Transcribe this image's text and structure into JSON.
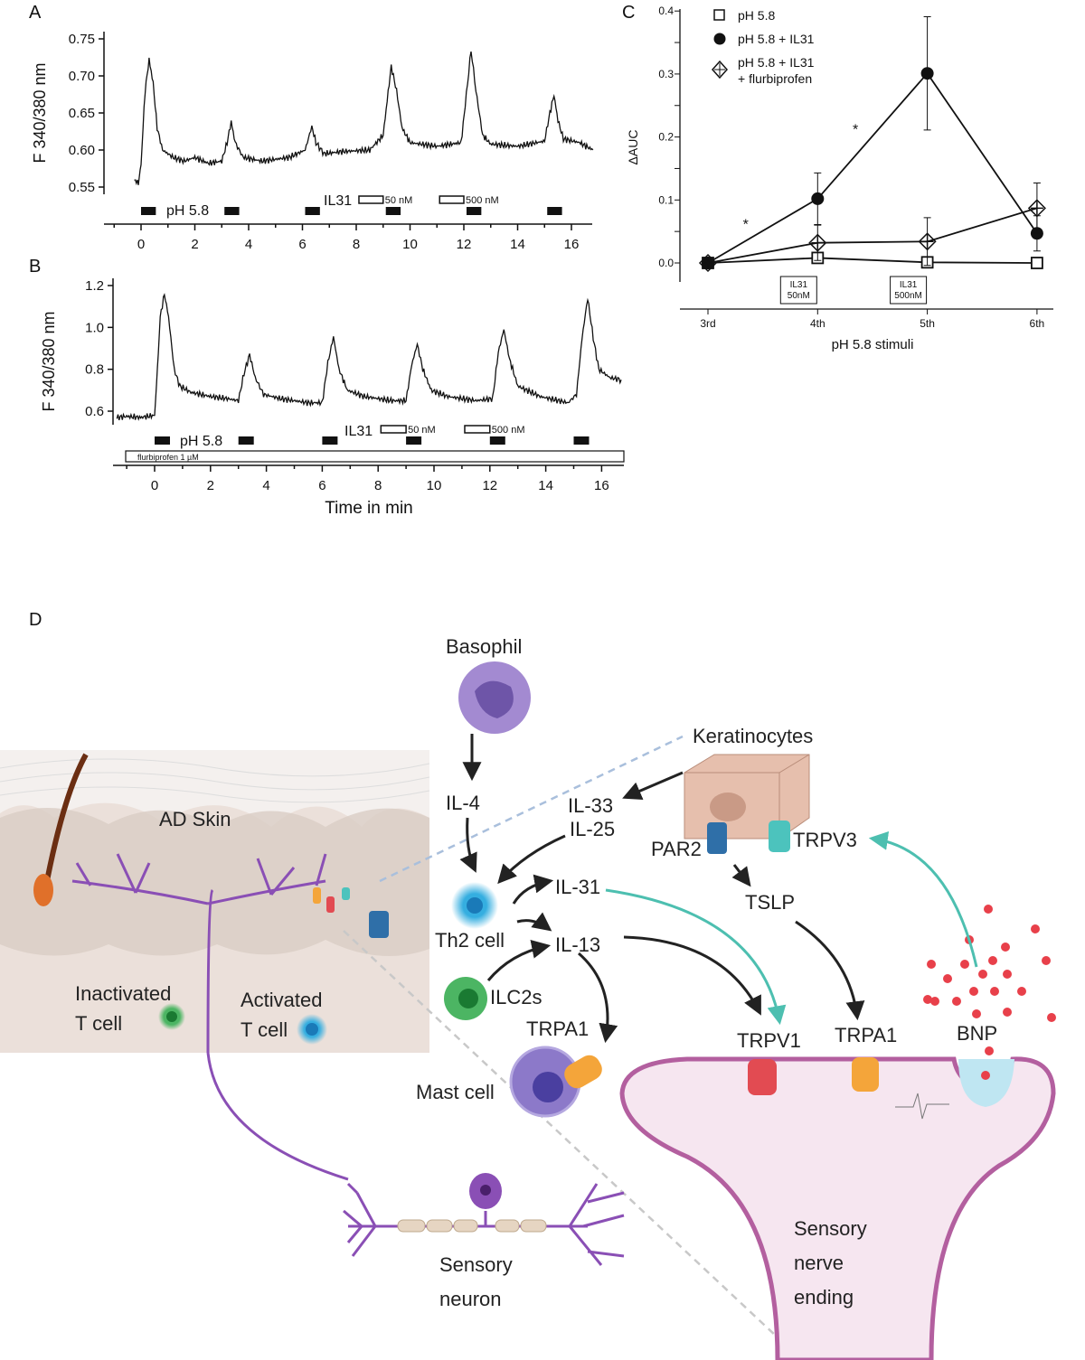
{
  "panels": {
    "a": "A",
    "b": "B",
    "c": "C",
    "d": "D"
  },
  "chart_data": [
    {
      "panel": "A",
      "type": "line",
      "ylabel": "F 340/380 nm",
      "xlabel": "",
      "xlim": [
        -0.5,
        17
      ],
      "ylim": [
        0.55,
        0.75
      ],
      "xticks": [
        0,
        2,
        4,
        6,
        8,
        10,
        12,
        14,
        16
      ],
      "yticks": [
        "0.55",
        "0.60",
        "0.65",
        "0.70",
        "0.75"
      ],
      "stimulus_label": "pH 5.8",
      "stimuli_start_min": [
        0,
        3.1,
        6.1,
        9.1,
        12.1,
        15.1
      ],
      "il31_label": "IL31",
      "il31_applications": [
        {
          "label": "50 nM",
          "start": 8.1,
          "end": 9.0
        },
        {
          "label": "500 nM",
          "start": 11.1,
          "end": 12.0
        }
      ],
      "trace": [
        [
          -0.25,
          0.56
        ],
        [
          -0.1,
          0.555
        ],
        [
          0,
          0.58
        ],
        [
          0.15,
          0.68
        ],
        [
          0.3,
          0.722
        ],
        [
          0.45,
          0.69
        ],
        [
          0.6,
          0.63
        ],
        [
          0.8,
          0.6
        ],
        [
          1.2,
          0.59
        ],
        [
          1.6,
          0.585
        ],
        [
          2,
          0.59
        ],
        [
          2.5,
          0.582
        ],
        [
          3.0,
          0.585
        ],
        [
          3.2,
          0.61
        ],
        [
          3.35,
          0.638
        ],
        [
          3.5,
          0.61
        ],
        [
          3.8,
          0.59
        ],
        [
          4.5,
          0.585
        ],
        [
          5.5,
          0.59
        ],
        [
          6.1,
          0.6
        ],
        [
          6.35,
          0.632
        ],
        [
          6.5,
          0.61
        ],
        [
          6.8,
          0.595
        ],
        [
          7.5,
          0.598
        ],
        [
          8.5,
          0.6
        ],
        [
          9.0,
          0.62
        ],
        [
          9.3,
          0.713
        ],
        [
          9.5,
          0.68
        ],
        [
          9.7,
          0.63
        ],
        [
          10,
          0.61
        ],
        [
          11,
          0.605
        ],
        [
          11.9,
          0.61
        ],
        [
          12.05,
          0.66
        ],
        [
          12.27,
          0.735
        ],
        [
          12.45,
          0.68
        ],
        [
          12.7,
          0.62
        ],
        [
          13,
          0.608
        ],
        [
          14,
          0.605
        ],
        [
          15,
          0.612
        ],
        [
          15.2,
          0.65
        ],
        [
          15.35,
          0.674
        ],
        [
          15.5,
          0.64
        ],
        [
          15.7,
          0.615
        ],
        [
          16.3,
          0.61
        ],
        [
          16.8,
          0.6
        ]
      ]
    },
    {
      "panel": "B",
      "type": "line",
      "ylabel": "F 340/380 nm",
      "xlabel": "Time in min",
      "xlim": [
        -1.5,
        17
      ],
      "ylim": [
        0.6,
        1.2
      ],
      "xticks": [
        0,
        2,
        4,
        6,
        8,
        10,
        12,
        14,
        16
      ],
      "yticks": [
        "0.6",
        "0.8",
        "1.0",
        "1.2"
      ],
      "stimulus_label": "pH 5.8",
      "stimuli_start_min": [
        0,
        3.0,
        6.0,
        9.0,
        12.0,
        15.0
      ],
      "il31_label": "IL31",
      "il31_applications": [
        {
          "label": "50 nM",
          "start": 8.1,
          "end": 9.0
        },
        {
          "label": "500 nM",
          "start": 11.1,
          "end": 12.0
        }
      ],
      "background_treatment": "flurbiprofen 1 µM",
      "trace": [
        [
          -1.35,
          0.57
        ],
        [
          -1.0,
          0.575
        ],
        [
          -0.5,
          0.57
        ],
        [
          0,
          0.58
        ],
        [
          0.1,
          0.8
        ],
        [
          0.2,
          1.05
        ],
        [
          0.35,
          1.16
        ],
        [
          0.5,
          1.05
        ],
        [
          0.7,
          0.8
        ],
        [
          0.9,
          0.72
        ],
        [
          1.3,
          0.69
        ],
        [
          2,
          0.67
        ],
        [
          2.6,
          0.66
        ],
        [
          3.0,
          0.65
        ],
        [
          3.2,
          0.78
        ],
        [
          3.4,
          0.87
        ],
        [
          3.6,
          0.76
        ],
        [
          3.9,
          0.68
        ],
        [
          4.5,
          0.66
        ],
        [
          5.5,
          0.64
        ],
        [
          6.0,
          0.64
        ],
        [
          6.2,
          0.83
        ],
        [
          6.4,
          0.955
        ],
        [
          6.6,
          0.8
        ],
        [
          6.9,
          0.7
        ],
        [
          7.5,
          0.67
        ],
        [
          8.5,
          0.65
        ],
        [
          9.0,
          0.65
        ],
        [
          9.2,
          0.82
        ],
        [
          9.4,
          0.92
        ],
        [
          9.6,
          0.8
        ],
        [
          9.9,
          0.7
        ],
        [
          10.5,
          0.67
        ],
        [
          11.5,
          0.65
        ],
        [
          12.1,
          0.66
        ],
        [
          12.3,
          0.88
        ],
        [
          12.5,
          0.99
        ],
        [
          12.7,
          0.85
        ],
        [
          13,
          0.72
        ],
        [
          13.8,
          0.67
        ],
        [
          14.8,
          0.64
        ],
        [
          15.1,
          0.68
        ],
        [
          15.3,
          0.95
        ],
        [
          15.5,
          1.14
        ],
        [
          15.7,
          0.95
        ],
        [
          15.9,
          0.8
        ],
        [
          16.3,
          0.76
        ],
        [
          16.7,
          0.75
        ]
      ]
    },
    {
      "panel": "C",
      "type": "line",
      "ylabel": "ΔAUC",
      "xlabel": "pH 5.8 stimuli",
      "categories": [
        "3rd",
        "4th",
        "5th",
        "6th"
      ],
      "ylim": [
        -0.03,
        0.4
      ],
      "yticks": [
        "0.0",
        "0.1",
        "0.2",
        "0.3",
        "0.4"
      ],
      "legend_position": "top-left",
      "series": [
        {
          "name": "pH 5.8",
          "marker": "open-square",
          "values": [
            0,
            0.008,
            0.001,
            0
          ],
          "errors": [
            0,
            0.005,
            0.004,
            0.002
          ]
        },
        {
          "name": "pH 5.8 + IL31",
          "marker": "filled-circle",
          "values": [
            0,
            0.102,
            0.301,
            0.047
          ],
          "errors": [
            0,
            0.041,
            0.09,
            0.028
          ]
        },
        {
          "name_lines": [
            "pH 5.8 + IL31",
            "+ flurbiprofen"
          ],
          "marker": "open-diamond-cross",
          "values": [
            0,
            0.032,
            0.034,
            0.087
          ],
          "errors": [
            0,
            0.028,
            0.038,
            0.04
          ]
        }
      ],
      "significance": [
        {
          "between": [
            "3rd",
            "4th"
          ],
          "label": "*"
        },
        {
          "between": [
            "4th",
            "5th"
          ],
          "label": "*"
        }
      ],
      "annotations": [
        {
          "at": "4th",
          "lines": [
            "IL31",
            "50nM"
          ]
        },
        {
          "at": "5th",
          "lines": [
            "IL31",
            "500nM"
          ]
        }
      ]
    }
  ],
  "diagram": {
    "basophil": "Basophil",
    "keratinocytes": "Keratinocytes",
    "il4": "IL-4",
    "il33": "IL-33",
    "il25": "IL-25",
    "ad_skin": "AD Skin",
    "par2": "PAR2",
    "trpv3": "TRPV3",
    "tslp": "TSLP",
    "th2": "Th2 cell",
    "il31": "IL-31",
    "il13": "IL-13",
    "ilc2": "ILC2s",
    "trpa1_mast": "TRPA1",
    "mast_cell": "Mast cell",
    "trpv1": "TRPV1",
    "trpa1_nerve": "TRPA1",
    "bnp": "BNP",
    "inactivated_t": [
      "Inactivated",
      "T cell"
    ],
    "activated_t": [
      "Activated",
      "T cell"
    ],
    "sensory_neuron": [
      "Sensory",
      "neuron"
    ],
    "nerve_ending": [
      "Sensory",
      "nerve",
      "ending"
    ],
    "colors": {
      "nerve": "#8a4fb5",
      "teal_arrow": "#4dbfb0",
      "th2": "#35aee0",
      "ilc2": "#4cb563",
      "basophil": "#a38ad1",
      "mast": "#8c79c9",
      "bnp": "#e8404a",
      "skin": "#ebe0da",
      "keratinocyte": "#e6bfad",
      "nerve_ending_fill": "#f6e6f0",
      "nerve_ending_stroke": "#b35f9f"
    }
  }
}
